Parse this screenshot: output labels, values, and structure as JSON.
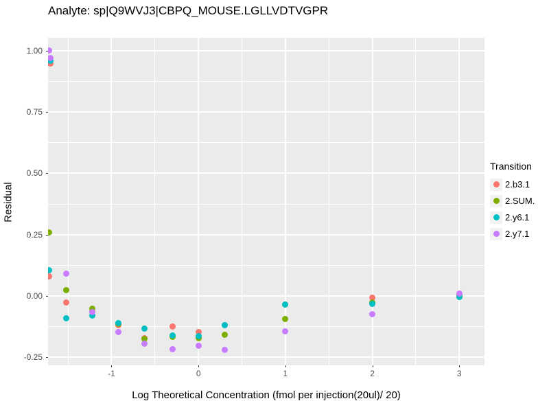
{
  "title": "Analyte: sp|Q9WVJ3|CBPQ_MOUSE.LGLLVDTVGPR",
  "chart_data": {
    "type": "scatter",
    "title": "Analyte: sp|Q9WVJ3|CBPQ_MOUSE.LGLLVDTVGPR",
    "xlabel": "Log Theoretical Concentration (fmol per injection(20ul)/ 20)",
    "ylabel": "Residual",
    "xlim": [
      -1.73,
      3.29
    ],
    "ylim": [
      -0.283,
      1.053
    ],
    "grid": true,
    "panel_bg": "#EBEBEB",
    "gridline_color": "#ffffff",
    "legend_position": "right",
    "legend_title": "Transition",
    "x_ticks": [
      {
        "v": -1,
        "label": "-1"
      },
      {
        "v": 0,
        "label": "0"
      },
      {
        "v": 1,
        "label": "1"
      },
      {
        "v": 2,
        "label": "2"
      },
      {
        "v": 3,
        "label": "3"
      }
    ],
    "y_ticks": [
      {
        "v": 1.0,
        "label": "1.00"
      },
      {
        "v": 0.75,
        "label": "0.75"
      },
      {
        "v": 0.5,
        "label": "0.50"
      },
      {
        "v": 0.25,
        "label": "0.25"
      },
      {
        "v": 0.0,
        "label": "0.00"
      },
      {
        "v": -0.25,
        "label": "-0.25"
      }
    ],
    "x_minor_ticks": [
      -1.5,
      -0.5,
      0.5,
      1.5,
      2.5
    ],
    "y_minor_ticks": [
      0.875,
      0.625,
      0.375,
      0.125,
      -0.125
    ],
    "series": [
      {
        "name": "2.b3.1",
        "color": "#F8766D",
        "points": [
          [
            -1.7,
            0.948
          ],
          [
            -1.72,
            0.08
          ],
          [
            -1.52,
            -0.028
          ],
          [
            -1.22,
            -0.062
          ],
          [
            -0.92,
            -0.12
          ],
          [
            -0.62,
            -0.172
          ],
          [
            -0.3,
            -0.126
          ],
          [
            0,
            -0.146
          ],
          [
            0.3,
            -0.12
          ],
          [
            1,
            -0.035
          ],
          [
            2,
            -0.006
          ],
          [
            3,
            -0.004
          ]
        ]
      },
      {
        "name": "2.SUM.",
        "color": "#7CAE00",
        "points": [
          [
            -1.72,
            0.26
          ],
          [
            -1.52,
            0.025
          ],
          [
            -1.22,
            -0.053
          ],
          [
            -0.92,
            -0.113
          ],
          [
            -0.62,
            -0.176
          ],
          [
            -0.3,
            -0.168
          ],
          [
            0,
            -0.172
          ],
          [
            0.3,
            -0.157
          ],
          [
            1,
            -0.095
          ],
          [
            2,
            -0.028
          ],
          [
            3,
            0.003
          ]
        ]
      },
      {
        "name": "2.y6.1",
        "color": "#00BFC4",
        "points": [
          [
            -1.7,
            0.958
          ],
          [
            -1.72,
            0.105
          ],
          [
            -1.52,
            -0.09
          ],
          [
            -1.22,
            -0.081
          ],
          [
            -0.92,
            -0.112
          ],
          [
            -0.62,
            -0.134
          ],
          [
            -0.3,
            -0.16
          ],
          [
            0,
            -0.165
          ],
          [
            0.3,
            -0.118
          ],
          [
            1,
            -0.034
          ],
          [
            2,
            -0.032
          ],
          [
            3,
            -0.005
          ]
        ]
      },
      {
        "name": "2.y7.1",
        "color": "#C77CFF",
        "points": [
          [
            -1.72,
            1.0
          ],
          [
            -1.7,
            0.97
          ],
          [
            -1.52,
            0.09
          ],
          [
            -1.22,
            -0.067
          ],
          [
            -0.92,
            -0.146
          ],
          [
            -0.62,
            -0.196
          ],
          [
            -0.3,
            -0.218
          ],
          [
            0,
            -0.202
          ],
          [
            0.3,
            -0.221
          ],
          [
            1,
            -0.143
          ],
          [
            2,
            -0.075
          ],
          [
            3,
            0.011
          ]
        ]
      }
    ]
  }
}
